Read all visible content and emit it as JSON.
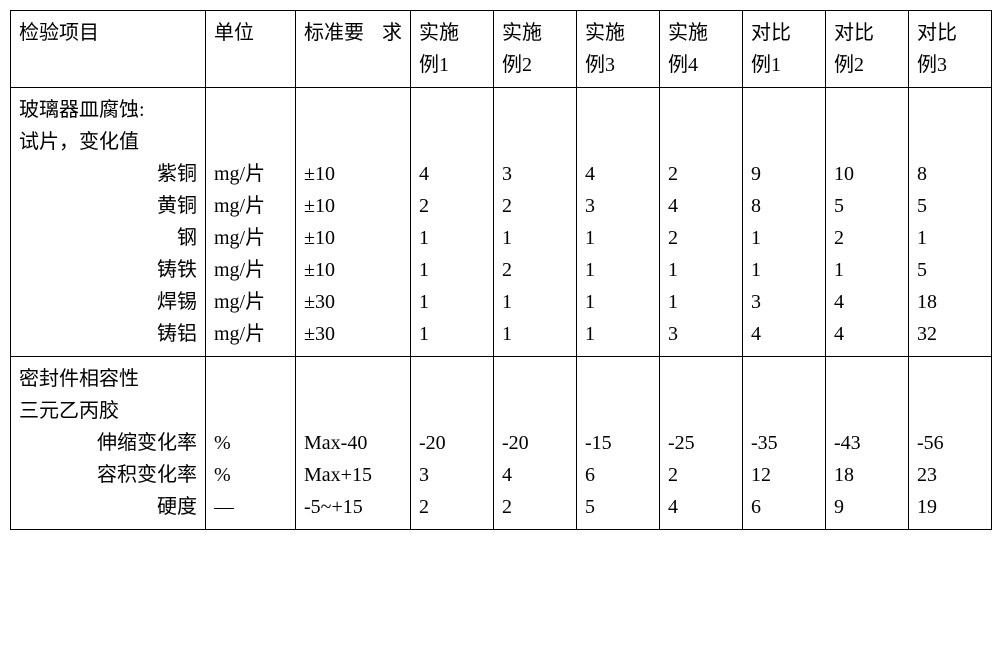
{
  "header": {
    "item": "检验项目",
    "unit": "单位",
    "std": "标准要求",
    "std_l1": "标准要",
    "std_l2": "求",
    "ex1": "实施例1",
    "ex1_l1": "实施",
    "ex1_l2": "例1",
    "ex2": "实施例2",
    "ex2_l1": "实施",
    "ex2_l2": "例2",
    "ex3": "实施例3",
    "ex3_l1": "实施",
    "ex3_l2": "例3",
    "ex4": "实施例4",
    "ex4_l1": "实施",
    "ex4_l2": "例4",
    "cmp1": "对比例1",
    "cmp1_l1": "对比",
    "cmp1_l2": "例1",
    "cmp2": "对比例2",
    "cmp2_l1": "对比",
    "cmp2_l2": "例2",
    "cmp3": "对比例3",
    "cmp3_l1": "对比",
    "cmp3_l2": "例3"
  },
  "section1": {
    "title_l1": "玻璃器皿腐蚀:",
    "title_l2": "试片，变化值",
    "rows": {
      "r1": {
        "label": "紫铜",
        "unit": "mg/片",
        "std": "±10",
        "v": [
          "4",
          "3",
          "4",
          "2",
          "9",
          "10",
          "8"
        ]
      },
      "r2": {
        "label": "黄铜",
        "unit": "mg/片",
        "std": "±10",
        "v": [
          "2",
          "2",
          "3",
          "4",
          "8",
          "5",
          "5"
        ]
      },
      "r3": {
        "label": "钢",
        "unit": "mg/片",
        "std": "±10",
        "v": [
          "1",
          "1",
          "1",
          "2",
          "1",
          "2",
          "1"
        ]
      },
      "r4": {
        "label": "铸铁",
        "unit": "mg/片",
        "std": "±10",
        "v": [
          "1",
          "2",
          "1",
          "1",
          "1",
          "1",
          "5"
        ]
      },
      "r5": {
        "label": "焊锡",
        "unit": "mg/片",
        "std": "±30",
        "v": [
          "1",
          "1",
          "1",
          "1",
          "3",
          "4",
          "18"
        ]
      },
      "r6": {
        "label": "铸铝",
        "unit": "mg/片",
        "std": "±30",
        "v": [
          "1",
          "1",
          "1",
          "3",
          "4",
          "4",
          "32"
        ]
      }
    }
  },
  "section2": {
    "title_l1": "密封件相容性",
    "title_l2": "三元乙丙胶",
    "rows": {
      "r1": {
        "label": "伸缩变化率",
        "unit": "%",
        "std": "Max-40",
        "v": [
          "-20",
          "-20",
          "-15",
          "-25",
          "-35",
          "-43",
          "-56"
        ]
      },
      "r2": {
        "label": "容积变化率",
        "unit": "%",
        "std": "Max+15",
        "v": [
          "3",
          "4",
          "6",
          "2",
          "12",
          "18",
          "23"
        ]
      },
      "r3": {
        "label": "硬度",
        "unit": "—",
        "std": "-5~+15",
        "v": [
          "2",
          "2",
          "5",
          "4",
          "6",
          "9",
          "19"
        ]
      }
    }
  },
  "style": {
    "border_color": "#000000",
    "bg_color": "#ffffff",
    "font_family": "SimSun",
    "font_size_pt": 15,
    "cell_text_color": "#000000",
    "line_height": 1.6
  }
}
